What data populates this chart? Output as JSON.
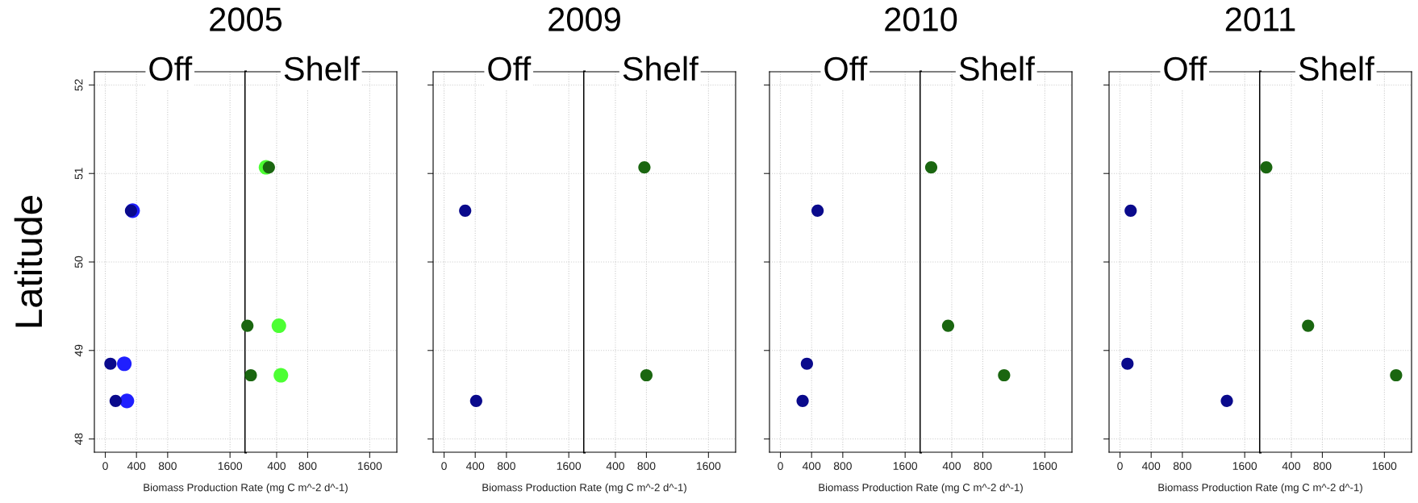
{
  "chart_data": [
    {
      "type": "scatter",
      "title": "2005",
      "subtitle": "Off",
      "xlabel": "Biomass Production Rate (mg C m^-2 d^-1)",
      "ylabel": "Latitude",
      "marker": "circle",
      "grid": true,
      "xlim": [
        -140,
        1800
      ],
      "ylim": [
        47.85,
        52.15
      ],
      "xticks": [
        0,
        400,
        800,
        1600
      ],
      "yticks": [
        48,
        49,
        50,
        51,
        52
      ],
      "series": [
        {
          "color": "#1f1fff",
          "x": [
            350,
            244,
            277
          ],
          "values": [
            50.58,
            48.85,
            48.43
          ]
        },
        {
          "color": "#0a0a8c",
          "x": [
            330,
            66,
            133
          ],
          "values": [
            50.58,
            48.85,
            48.43
          ]
        }
      ]
    },
    {
      "type": "scatter",
      "subtitle": "Shelf",
      "marker": "circle",
      "grid": true,
      "tick_labels": "x",
      "xlim": [
        0,
        1950
      ],
      "ylim": [
        47.85,
        52.15
      ],
      "xticks": [
        400,
        800,
        1600
      ],
      "yticks": [
        48,
        49,
        50,
        51,
        52
      ],
      "series": [
        {
          "color": "#4cff33",
          "x": [
            263,
            429,
            455
          ],
          "values": [
            51.07,
            49.28,
            48.72
          ]
        },
        {
          "color": "#1a6610",
          "x": [
            300,
            23,
            67
          ],
          "values": [
            51.07,
            49.28,
            48.72
          ]
        }
      ]
    },
    {
      "type": "scatter",
      "title": "2009",
      "subtitle": "Off",
      "xlabel": "Biomass Production Rate (mg C m^-2 d^-1)",
      "marker": "circle",
      "grid": true,
      "tick_labels": "x",
      "xlim": [
        -140,
        1800
      ],
      "ylim": [
        47.85,
        52.15
      ],
      "xticks": [
        0,
        400,
        800,
        1600
      ],
      "yticks": [
        48,
        49,
        50,
        51,
        52
      ],
      "series": [
        {
          "color": "#0a0a8c",
          "x": [
            271,
            412
          ],
          "values": [
            50.58,
            48.43
          ]
        }
      ]
    },
    {
      "type": "scatter",
      "subtitle": "Shelf",
      "marker": "circle",
      "grid": true,
      "tick_labels": "x",
      "xlim": [
        0,
        1950
      ],
      "ylim": [
        47.85,
        52.15
      ],
      "xticks": [
        400,
        800,
        1600
      ],
      "yticks": [
        48,
        49,
        50,
        51,
        52
      ],
      "series": [
        {
          "color": "#1a6610",
          "x": [
            774,
            800
          ],
          "values": [
            51.07,
            48.72
          ]
        }
      ]
    },
    {
      "type": "scatter",
      "title": "2010",
      "subtitle": "Off",
      "xlabel": "Biomass Production Rate (mg C m^-2 d^-1)",
      "marker": "circle",
      "grid": true,
      "tick_labels": "x",
      "xlim": [
        -140,
        1800
      ],
      "ylim": [
        47.85,
        52.15
      ],
      "xticks": [
        0,
        400,
        800,
        1600
      ],
      "yticks": [
        48,
        49,
        50,
        51,
        52
      ],
      "series": [
        {
          "color": "#0a0a8c",
          "x": [
            477,
            340,
            285
          ],
          "values": [
            50.58,
            48.85,
            48.43
          ]
        }
      ]
    },
    {
      "type": "scatter",
      "subtitle": "Shelf",
      "marker": "circle",
      "grid": true,
      "tick_labels": "x",
      "xlim": [
        0,
        1950
      ],
      "ylim": [
        47.85,
        52.15
      ],
      "xticks": [
        400,
        800,
        1600
      ],
      "yticks": [
        48,
        49,
        50,
        51,
        52
      ],
      "series": [
        {
          "color": "#1a6610",
          "x": [
            135,
            353,
            1075
          ],
          "values": [
            51.07,
            49.28,
            48.72
          ]
        }
      ]
    },
    {
      "type": "scatter",
      "title": "2011",
      "subtitle": "Off",
      "xlabel": "Biomass Production Rate (mg C m^-2 d^-1)",
      "marker": "circle",
      "grid": true,
      "tick_labels": "x",
      "xlim": [
        -140,
        1800
      ],
      "ylim": [
        47.85,
        52.15
      ],
      "xticks": [
        0,
        400,
        800,
        1600
      ],
      "yticks": [
        48,
        49,
        50,
        51,
        52
      ],
      "series": [
        {
          "color": "#0a0a8c",
          "x": [
            137,
            96,
            1371
          ],
          "values": [
            50.58,
            48.85,
            48.43
          ]
        }
      ]
    },
    {
      "type": "scatter",
      "subtitle": "Shelf",
      "marker": "circle",
      "grid": true,
      "tick_labels": "x",
      "xlim": [
        0,
        1950
      ],
      "ylim": [
        47.85,
        52.15
      ],
      "xticks": [
        400,
        800,
        1600
      ],
      "yticks": [
        48,
        49,
        50,
        51,
        52
      ],
      "series": [
        {
          "color": "#1a6610",
          "x": [
            77,
            616,
            1751
          ],
          "values": [
            51.07,
            49.28,
            48.72
          ]
        }
      ]
    }
  ]
}
